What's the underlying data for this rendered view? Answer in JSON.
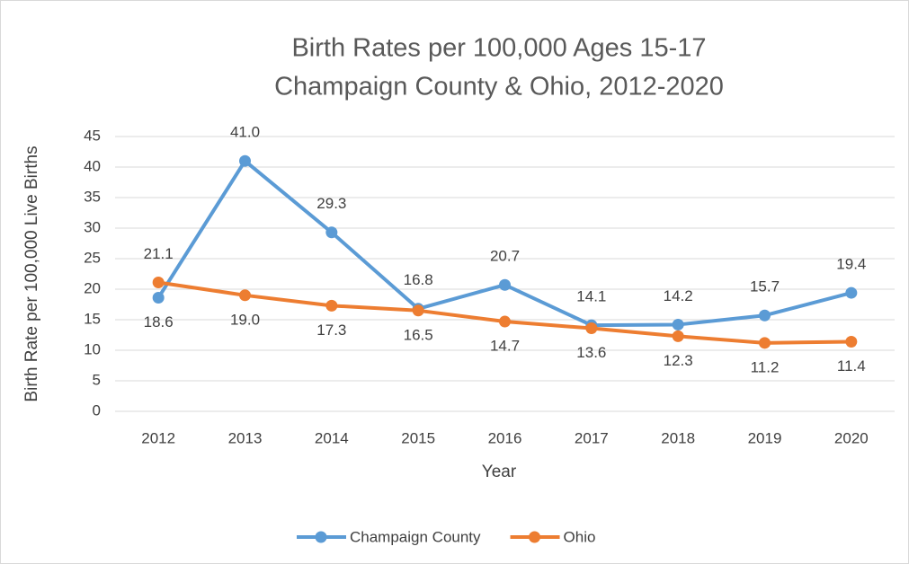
{
  "chart_data": {
    "type": "line",
    "title": "Birth Rates per 100,000 Ages 15-17",
    "subtitle": "Champaign County & Ohio, 2012-2020",
    "x_label": "Year",
    "y_label": "Birth Rate per 100,000 Live Births",
    "categories": [
      "2012",
      "2013",
      "2014",
      "2015",
      "2016",
      "2017",
      "2018",
      "2019",
      "2020"
    ],
    "series": [
      {
        "name": "Champaign County",
        "color": "#5b9bd5",
        "values": [
          18.6,
          41.0,
          29.3,
          16.8,
          20.7,
          14.1,
          14.2,
          15.7,
          19.4
        ],
        "value_labels": [
          "18.6",
          "41.0",
          "29.3",
          "16.8",
          "20.7",
          "14.1",
          "14.2",
          "15.7",
          "19.4"
        ]
      },
      {
        "name": "Ohio",
        "color": "#ed7d31",
        "values": [
          21.1,
          19.0,
          17.3,
          16.5,
          14.7,
          13.6,
          12.3,
          11.2,
          11.4
        ],
        "value_labels": [
          "21.1",
          "19.0",
          "17.3",
          "16.5",
          "14.7",
          "13.6",
          "12.3",
          "11.2",
          "11.4"
        ]
      }
    ],
    "ylim": [
      0,
      45
    ],
    "yticks": [
      0,
      5,
      10,
      15,
      20,
      25,
      30,
      35,
      40,
      45
    ],
    "grid": true,
    "legend": "bottom"
  }
}
